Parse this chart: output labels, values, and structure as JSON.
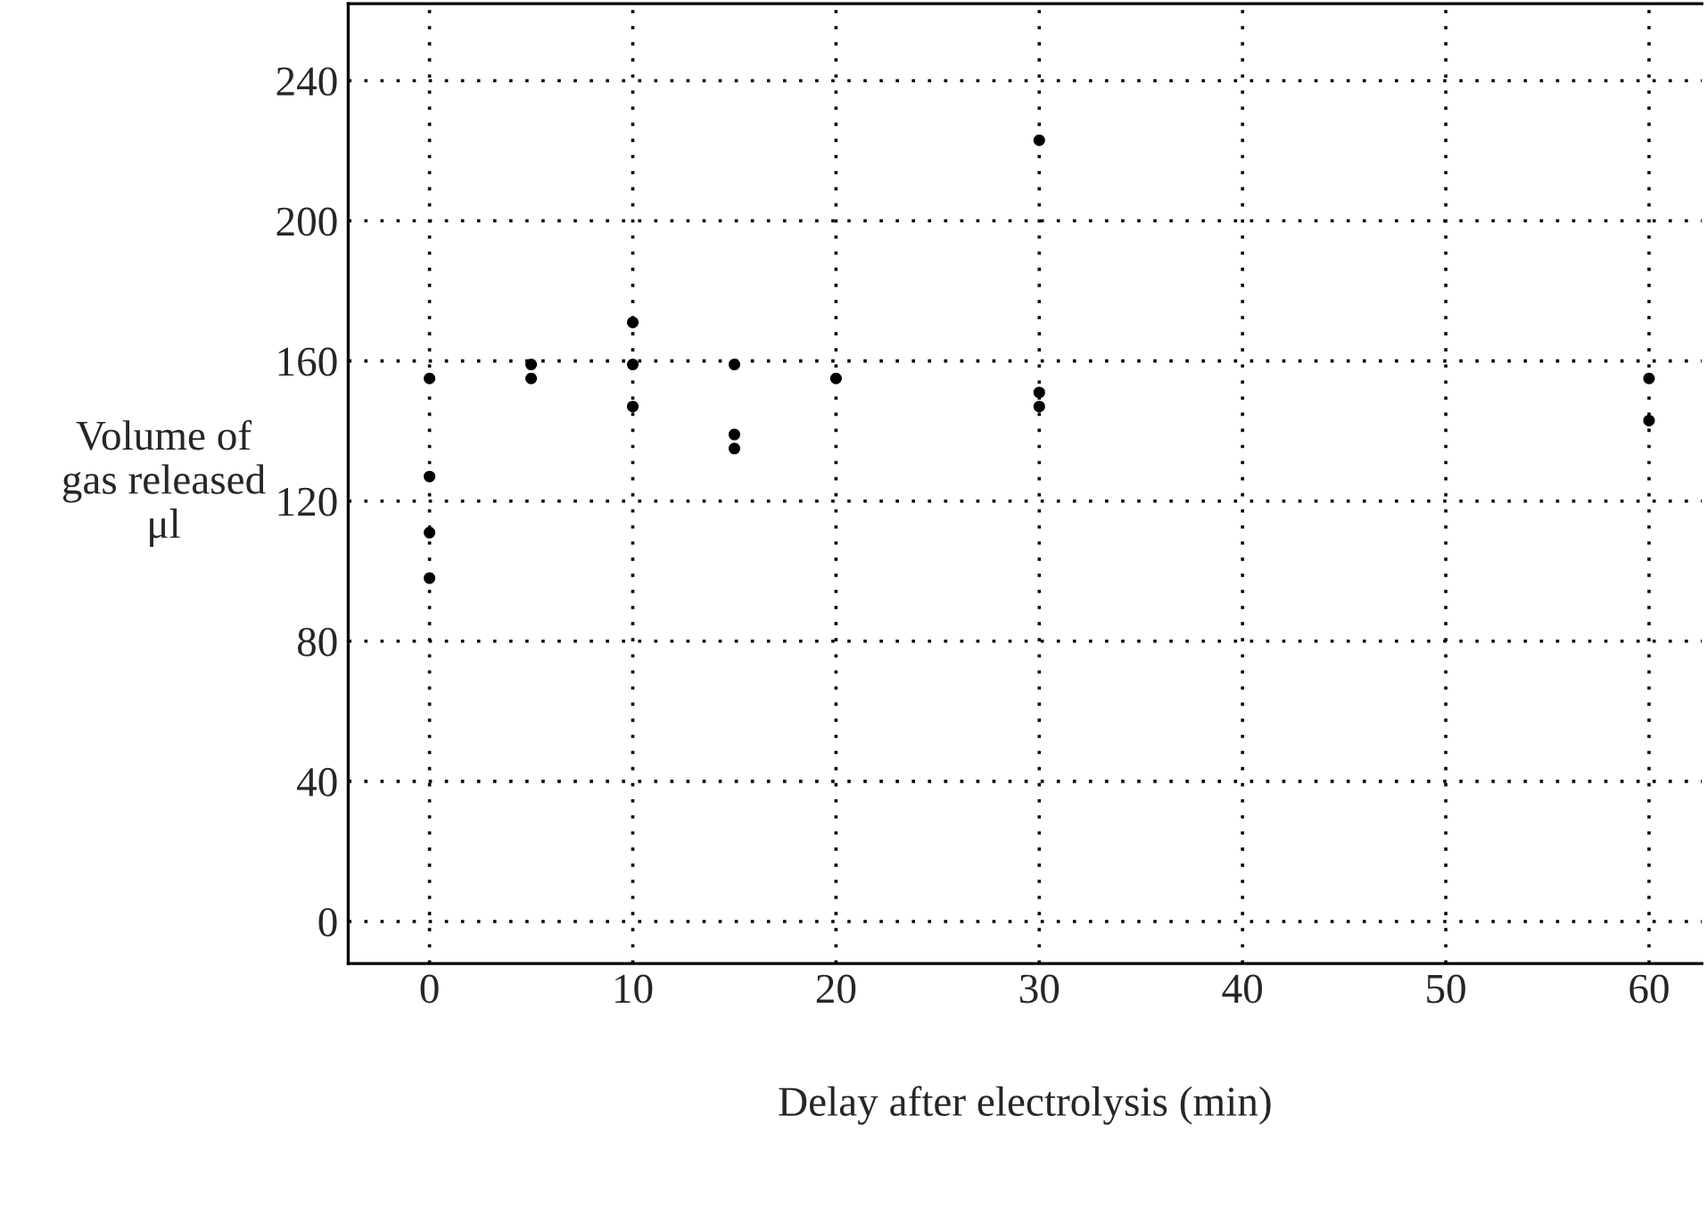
{
  "chart_data": {
    "type": "scatter",
    "xlabel": "Delay after electrolysis (min)",
    "ylabel": "Volume of\ngas released\nμl",
    "x": [
      0,
      0,
      0,
      0,
      5,
      5,
      10,
      10,
      10,
      15,
      15,
      15,
      20,
      30,
      30,
      30,
      60,
      60
    ],
    "series": [
      {
        "color": "#000000",
        "values": [
          155,
          127,
          111,
          98,
          159,
          155,
          171,
          159,
          147,
          159,
          139,
          135,
          155,
          223,
          151,
          147,
          155,
          143
        ]
      }
    ],
    "xlim": [
      -4,
      62.6
    ],
    "ylim": [
      -12,
      262
    ],
    "xticks": [
      0,
      10,
      20,
      30,
      40,
      50,
      60
    ],
    "yticks": [
      0,
      40,
      80,
      120,
      160,
      200,
      240
    ],
    "grid": true,
    "marker": "circle"
  }
}
